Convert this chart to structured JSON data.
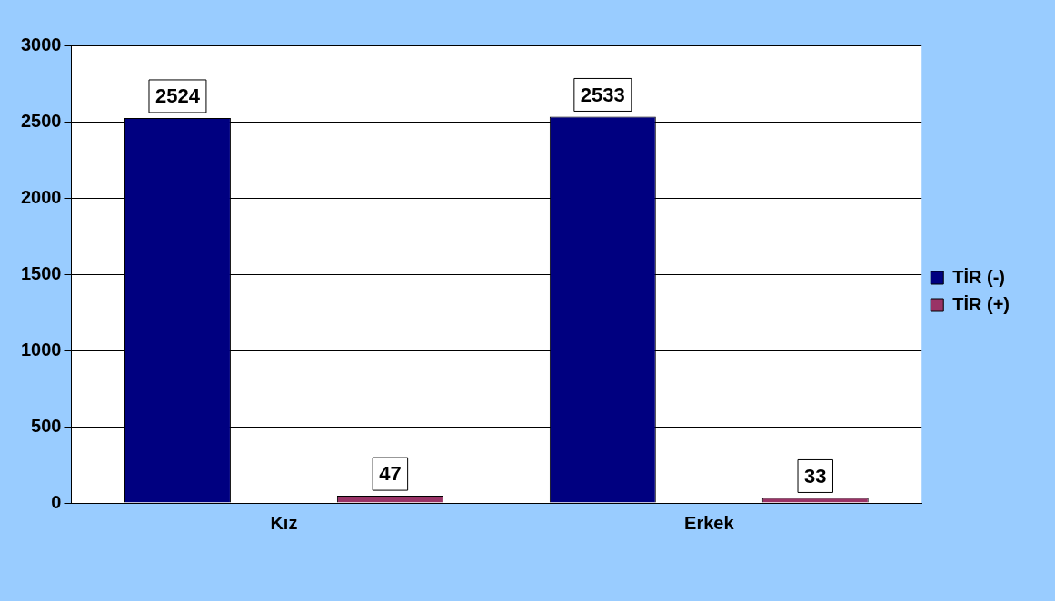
{
  "chart_data": {
    "type": "bar",
    "categories": [
      "Kız",
      "Erkek"
    ],
    "series": [
      {
        "name": "TİR (-)",
        "color": "#000080",
        "values": [
          2524,
          2533
        ]
      },
      {
        "name": "TİR (+)",
        "color": "#993366",
        "values": [
          47,
          33
        ]
      }
    ],
    "ylim": [
      0,
      3000
    ],
    "yticks": [
      0,
      500,
      1000,
      1500,
      2000,
      2500,
      3000
    ],
    "grid": "y",
    "legend": "right",
    "data_labels": true
  }
}
